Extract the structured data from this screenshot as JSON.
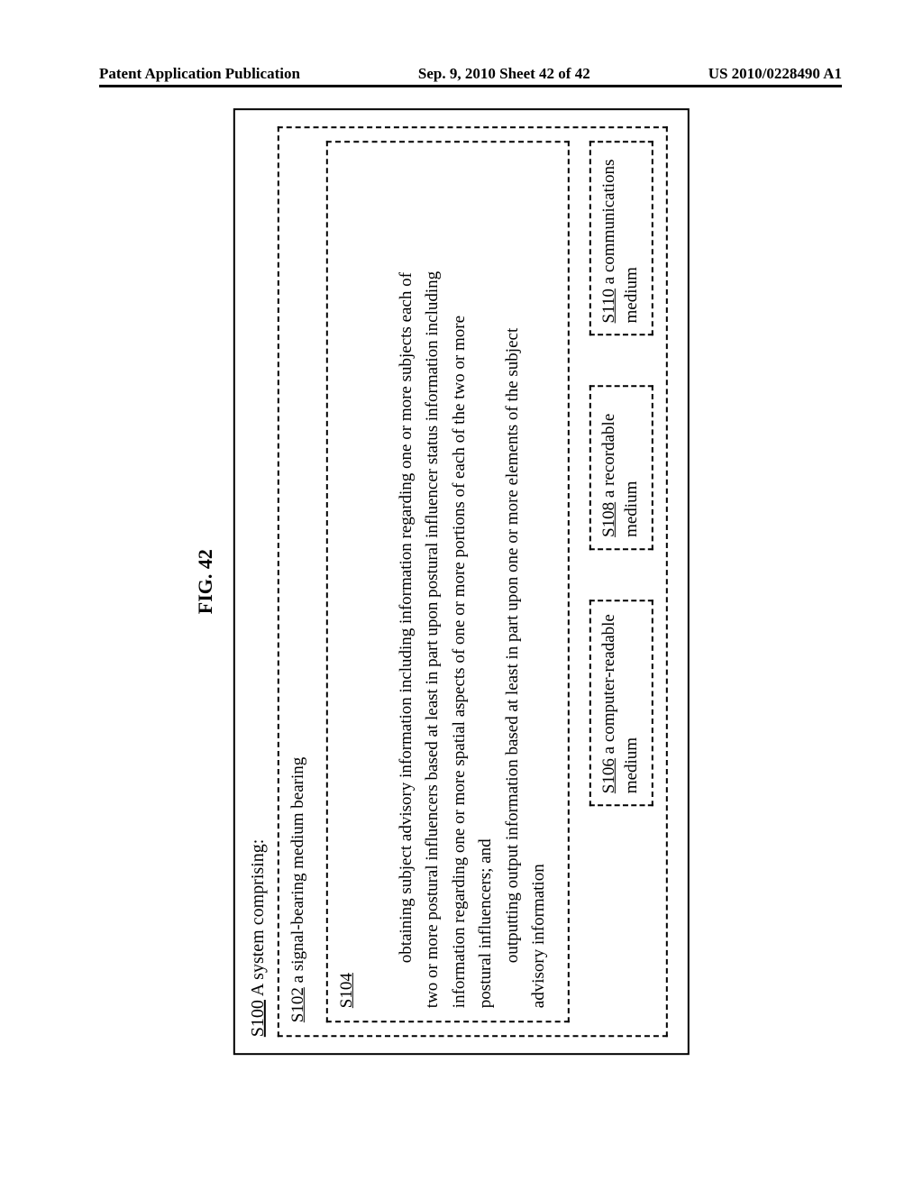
{
  "header": {
    "left": "Patent Application Publication",
    "center": "Sep. 9, 2010  Sheet 42 of 42",
    "right": "US 2010/0228490 A1"
  },
  "figure": {
    "label": "FIG. 42",
    "title_ref": "S100",
    "title_text": " A system comprising:",
    "s102_ref": "S102",
    "s102_text": "  a signal-bearing medium bearing",
    "s104_ref": "S104",
    "body_line1": "obtaining subject advisory information including information regarding one or more subjects each of",
    "body_line2": "two or more postural influencers based at least in part upon postural influencer status information including",
    "body_line3": "information regarding one or more spatial aspects of one or more portions of each of the two or more",
    "body_line4": "postural influencers; and",
    "body_line5_indent": "outputting output information based at least in part upon one or more elements of the subject",
    "body_line6": "advisory information",
    "media": {
      "s106_ref": "S106",
      "s106_text": "  a computer-readable medium",
      "s108_ref": "S108",
      "s108_text": "  a recordable medium",
      "s110_ref": "S110",
      "s110_text": "  a communications medium"
    }
  }
}
